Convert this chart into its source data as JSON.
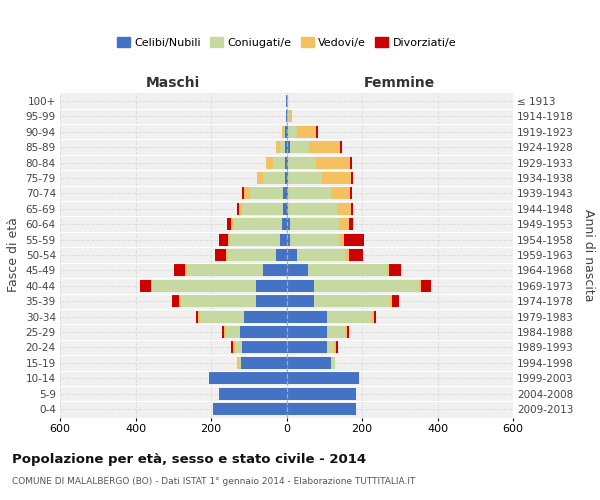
{
  "age_groups": [
    "0-4",
    "5-9",
    "10-14",
    "15-19",
    "20-24",
    "25-29",
    "30-34",
    "35-39",
    "40-44",
    "45-49",
    "50-54",
    "55-59",
    "60-64",
    "65-69",
    "70-74",
    "75-79",
    "80-84",
    "85-89",
    "90-94",
    "95-99",
    "100+"
  ],
  "birth_years": [
    "2009-2013",
    "2004-2008",
    "1999-2003",
    "1994-1998",
    "1989-1993",
    "1984-1988",
    "1979-1983",
    "1974-1978",
    "1969-1973",
    "1964-1968",
    "1959-1963",
    "1954-1958",
    "1949-1953",
    "1944-1948",
    "1939-1943",
    "1934-1938",
    "1929-1933",
    "1924-1928",
    "1919-1923",
    "1914-1918",
    "≤ 1913"
  ],
  "maschi": {
    "celibi": [
      195,
      178,
      205,
      120,
      118,
      122,
      112,
      82,
      80,
      62,
      28,
      18,
      12,
      10,
      10,
      5,
      5,
      4,
      3,
      2,
      2
    ],
    "coniugati": [
      0,
      0,
      0,
      5,
      18,
      38,
      118,
      198,
      275,
      202,
      128,
      132,
      130,
      108,
      88,
      58,
      32,
      14,
      4,
      0,
      0
    ],
    "vedovi": [
      0,
      0,
      0,
      5,
      5,
      5,
      5,
      5,
      5,
      5,
      5,
      5,
      5,
      9,
      14,
      14,
      18,
      10,
      5,
      0,
      0
    ],
    "divorziati": [
      0,
      0,
      0,
      0,
      5,
      5,
      5,
      18,
      28,
      28,
      28,
      25,
      10,
      5,
      5,
      0,
      0,
      0,
      0,
      0,
      0
    ]
  },
  "femmine": {
    "nubili": [
      183,
      183,
      193,
      118,
      108,
      108,
      108,
      73,
      73,
      58,
      28,
      10,
      10,
      5,
      5,
      5,
      5,
      8,
      5,
      2,
      2
    ],
    "coniugate": [
      0,
      0,
      0,
      10,
      18,
      48,
      118,
      202,
      278,
      208,
      128,
      128,
      128,
      128,
      112,
      88,
      72,
      52,
      22,
      5,
      0
    ],
    "vedove": [
      0,
      0,
      0,
      0,
      5,
      5,
      5,
      5,
      5,
      5,
      9,
      14,
      28,
      38,
      52,
      78,
      92,
      82,
      52,
      8,
      3
    ],
    "divorziate": [
      0,
      0,
      0,
      0,
      5,
      5,
      5,
      18,
      28,
      32,
      38,
      52,
      10,
      5,
      5,
      5,
      5,
      5,
      5,
      0,
      0
    ]
  },
  "colors": {
    "celibi": "#4472C4",
    "coniugati": "#C5D9A0",
    "vedovi": "#F5C060",
    "divorziati": "#CC0000"
  },
  "title": "Popolazione per età, sesso e stato civile - 2014",
  "subtitle": "COMUNE DI MALALBERGO (BO) - Dati ISTAT 1° gennaio 2014 - Elaborazione TUTTITALIA.IT",
  "xlabel_left": "Maschi",
  "xlabel_right": "Femmine",
  "ylabel_left": "Fasce di età",
  "ylabel_right": "Anni di nascita",
  "legend_labels": [
    "Celibi/Nubili",
    "Coniugati/e",
    "Vedovi/e",
    "Divorziati/e"
  ],
  "xlim": 600,
  "background_color": "#ffffff",
  "plot_bg": "#f0f0f0",
  "grid_color": "#dddddd"
}
